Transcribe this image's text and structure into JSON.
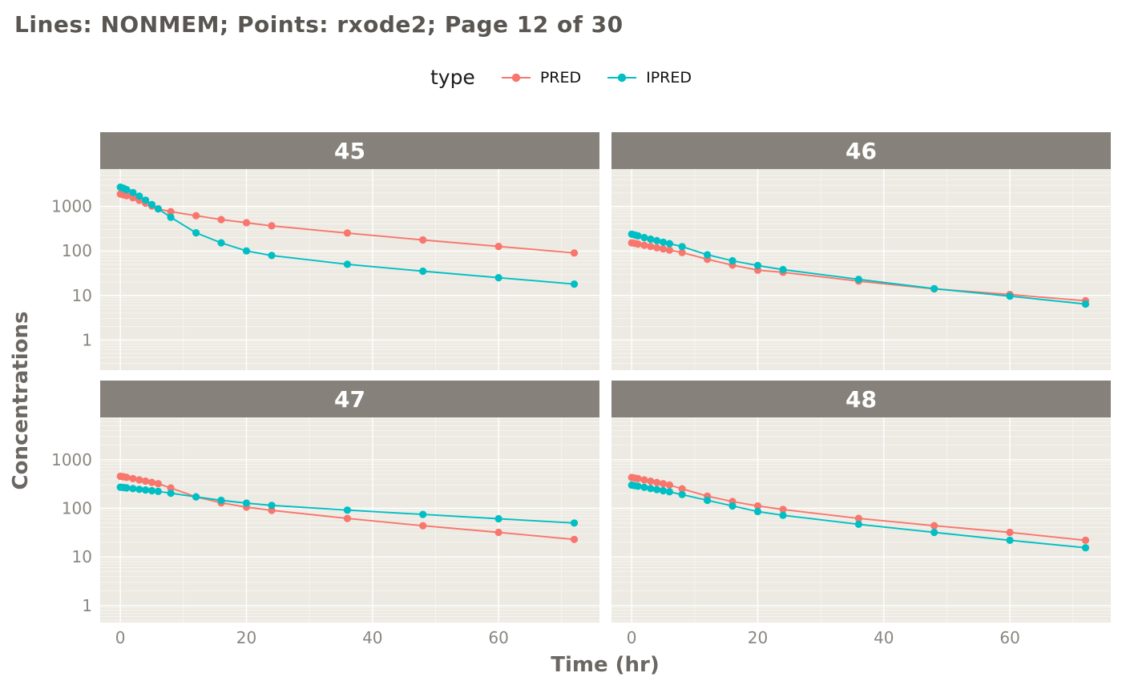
{
  "title": "Lines: NONMEM; Points: rxode2; Page 12 of 30",
  "legend": {
    "title": "type",
    "entries": [
      {
        "label": "PRED",
        "color": "#F8766D"
      },
      {
        "label": "IPRED",
        "color": "#00BFC4"
      }
    ]
  },
  "axes": {
    "x_label": "Time (hr)",
    "y_label": "Concentrations",
    "x_ticks": [
      0,
      20,
      40,
      60
    ],
    "y_ticks": [
      1000,
      100,
      10,
      1
    ],
    "x_range": [
      -3.2,
      76
    ],
    "y_scale": "log10"
  },
  "style": {
    "pred_color": "#F8766D",
    "ipred_color": "#00BFC4",
    "panel_bg": "#ECEAE2",
    "strip_bg": "#86817A",
    "strip_text": "#FFFFFF",
    "grid_color": "#FFFFFF",
    "axis_text_color": "#8A8680",
    "title_color": "#595551",
    "axis_title_color": "#6B6762"
  },
  "chart_data": {
    "type": "line",
    "title": "Lines: NONMEM; Points: rxode2; Page 12 of 30",
    "xlabel": "Time (hr)",
    "ylabel": "Concentrations",
    "y_scale": "log10",
    "xlim": [
      -3.2,
      76
    ],
    "facets": [
      {
        "label": "45",
        "series": [
          {
            "name": "PRED",
            "color": "#F8766D",
            "points": [
              [
                0,
                1900
              ],
              [
                0.5,
                1820
              ],
              [
                1,
                1740
              ],
              [
                2,
                1560
              ],
              [
                3,
                1370
              ],
              [
                4,
                1180
              ],
              [
                5,
                1020
              ],
              [
                6,
                880
              ],
              [
                8,
                760
              ],
              [
                12,
                620
              ],
              [
                16,
                505
              ],
              [
                20,
                430
              ],
              [
                24,
                365
              ],
              [
                36,
                252
              ],
              [
                48,
                176
              ],
              [
                60,
                126
              ],
              [
                72,
                90
              ]
            ]
          },
          {
            "name": "IPRED",
            "color": "#00BFC4",
            "points": [
              [
                0,
                2700
              ],
              [
                0.5,
                2550
              ],
              [
                1,
                2380
              ],
              [
                2,
                2050
              ],
              [
                3,
                1700
              ],
              [
                4,
                1380
              ],
              [
                5,
                1100
              ],
              [
                6,
                880
              ],
              [
                8,
                570
              ],
              [
                12,
                255
              ],
              [
                16,
                152
              ],
              [
                20,
                100
              ],
              [
                24,
                79
              ],
              [
                36,
                50
              ],
              [
                48,
                35
              ],
              [
                60,
                25
              ],
              [
                72,
                18
              ]
            ]
          }
        ]
      },
      {
        "label": "46",
        "series": [
          {
            "name": "PRED",
            "color": "#F8766D",
            "points": [
              [
                0,
                152
              ],
              [
                0.5,
                148
              ],
              [
                1,
                143
              ],
              [
                2,
                134
              ],
              [
                3,
                126
              ],
              [
                4,
                118
              ],
              [
                5,
                111
              ],
              [
                6,
                104
              ],
              [
                8,
                92
              ],
              [
                12,
                65
              ],
              [
                16,
                48
              ],
              [
                20,
                37
              ],
              [
                24,
                33
              ],
              [
                36,
                21
              ],
              [
                48,
                14
              ],
              [
                60,
                10.5
              ],
              [
                72,
                7.6
              ]
            ]
          },
          {
            "name": "IPRED",
            "color": "#00BFC4",
            "points": [
              [
                0,
                238
              ],
              [
                0.5,
                228
              ],
              [
                1,
                218
              ],
              [
                2,
                200
              ],
              [
                3,
                184
              ],
              [
                4,
                170
              ],
              [
                5,
                157
              ],
              [
                6,
                146
              ],
              [
                8,
                125
              ],
              [
                12,
                82
              ],
              [
                16,
                60
              ],
              [
                20,
                47
              ],
              [
                24,
                38
              ],
              [
                36,
                23
              ],
              [
                48,
                14.2
              ],
              [
                60,
                9.6
              ],
              [
                72,
                6.4
              ]
            ]
          }
        ]
      },
      {
        "label": "47",
        "series": [
          {
            "name": "PRED",
            "color": "#F8766D",
            "points": [
              [
                0,
                455
              ],
              [
                0.5,
                445
              ],
              [
                1,
                432
              ],
              [
                2,
                408
              ],
              [
                3,
                385
              ],
              [
                4,
                363
              ],
              [
                5,
                342
              ],
              [
                6,
                322
              ],
              [
                8,
                262
              ],
              [
                12,
                172
              ],
              [
                16,
                130
              ],
              [
                20,
                106
              ],
              [
                24,
                91
              ],
              [
                36,
                62
              ],
              [
                48,
                44
              ],
              [
                60,
                32
              ],
              [
                72,
                23
              ]
            ]
          },
          {
            "name": "IPRED",
            "color": "#00BFC4",
            "points": [
              [
                0,
                272
              ],
              [
                0.5,
                268
              ],
              [
                1,
                263
              ],
              [
                2,
                254
              ],
              [
                3,
                246
              ],
              [
                4,
                238
              ],
              [
                5,
                230
              ],
              [
                6,
                223
              ],
              [
                8,
                205
              ],
              [
                12,
                172
              ],
              [
                16,
                146
              ],
              [
                20,
                128
              ],
              [
                24,
                115
              ],
              [
                36,
                92
              ],
              [
                48,
                75
              ],
              [
                60,
                61
              ],
              [
                72,
                50
              ]
            ]
          }
        ]
      },
      {
        "label": "48",
        "series": [
          {
            "name": "PRED",
            "color": "#F8766D",
            "points": [
              [
                0,
                430
              ],
              [
                0.5,
                420
              ],
              [
                1,
                408
              ],
              [
                2,
                385
              ],
              [
                3,
                362
              ],
              [
                4,
                341
              ],
              [
                5,
                321
              ],
              [
                6,
                302
              ],
              [
                8,
                252
              ],
              [
                12,
                178
              ],
              [
                16,
                138
              ],
              [
                20,
                112
              ],
              [
                24,
                95
              ],
              [
                36,
                62
              ],
              [
                48,
                44
              ],
              [
                60,
                32
              ],
              [
                72,
                22
              ]
            ]
          },
          {
            "name": "IPRED",
            "color": "#00BFC4",
            "points": [
              [
                0,
                300
              ],
              [
                0.5,
                293
              ],
              [
                1,
                285
              ],
              [
                2,
                270
              ],
              [
                3,
                256
              ],
              [
                4,
                243
              ],
              [
                5,
                230
              ],
              [
                6,
                218
              ],
              [
                8,
                192
              ],
              [
                12,
                146
              ],
              [
                16,
                112
              ],
              [
                20,
                86
              ],
              [
                24,
                72
              ],
              [
                36,
                47
              ],
              [
                48,
                32
              ],
              [
                60,
                22
              ],
              [
                72,
                15.5
              ]
            ]
          }
        ]
      }
    ]
  }
}
